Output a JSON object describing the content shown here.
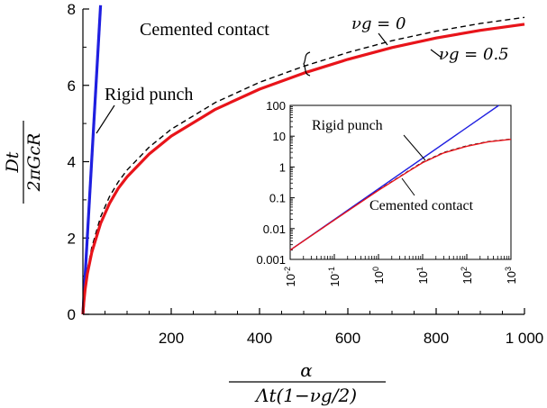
{
  "chart_data": [
    {
      "type": "line",
      "role": "main",
      "xlim": [
        0,
        1000
      ],
      "ylim": [
        0,
        8
      ],
      "x_ticks": [
        200,
        400,
        600,
        800,
        1000
      ],
      "x_tick_labels": [
        "200",
        "400",
        "600",
        "800",
        "1 000"
      ],
      "y_ticks": [
        0,
        2,
        4,
        6,
        8
      ],
      "y_tick_labels": [
        "0",
        "2",
        "4",
        "6",
        "8"
      ],
      "xlabel": {
        "numerator": "α",
        "denominator": "Λt(1−νg/2)"
      },
      "ylabel": {
        "numerator": "Dt",
        "denominator": "2πGcR"
      },
      "grid": false,
      "series": [
        {
          "name": "Rigid punch",
          "color": "#1f1fe0",
          "style": "solid",
          "x": [
            0,
            40
          ],
          "y": [
            0,
            8.1
          ]
        },
        {
          "name": "νg = 0",
          "color": "#000000",
          "style": "dashed",
          "x": [
            0,
            2,
            5,
            10,
            20,
            40,
            60,
            80,
            100,
            150,
            200,
            300,
            400,
            500,
            600,
            700,
            800,
            900,
            1000
          ],
          "y": [
            0,
            0.35,
            0.72,
            1.15,
            1.75,
            2.55,
            3.08,
            3.47,
            3.78,
            4.38,
            4.85,
            5.55,
            6.08,
            6.5,
            6.86,
            7.17,
            7.42,
            7.62,
            7.78
          ]
        },
        {
          "name": "νg = 0.5",
          "color": "#e8141a",
          "style": "solid",
          "x": [
            0,
            2,
            5,
            10,
            20,
            40,
            60,
            80,
            100,
            150,
            200,
            300,
            400,
            500,
            600,
            700,
            800,
            900,
            1000
          ],
          "y": [
            0,
            0.32,
            0.66,
            1.06,
            1.62,
            2.38,
            2.9,
            3.3,
            3.6,
            4.2,
            4.67,
            5.37,
            5.9,
            6.32,
            6.68,
            6.99,
            7.24,
            7.44,
            7.6
          ]
        }
      ],
      "annotations": {
        "rigid_punch": "Rigid punch",
        "cemented_contact": "Cemented contact",
        "nu_zero": "νg = 0",
        "nu_half": "νg = 0.5"
      }
    },
    {
      "type": "line",
      "role": "inset",
      "scale": "log-log",
      "xlim": [
        0.01,
        1000
      ],
      "ylim": [
        0.001,
        100
      ],
      "x_ticks": [
        0.01,
        0.1,
        1,
        10,
        100,
        1000
      ],
      "x_tick_labels": [
        [
          "10",
          "-2"
        ],
        [
          "10",
          "-1"
        ],
        [
          "10",
          "0"
        ],
        [
          "10",
          "1"
        ],
        [
          "10",
          "2"
        ],
        [
          "10",
          "3"
        ]
      ],
      "y_ticks": [
        0.001,
        0.01,
        0.1,
        1,
        10,
        100
      ],
      "y_tick_labels": [
        "0.001",
        "0.01",
        "0.1",
        "1",
        "10",
        "100"
      ],
      "series": [
        {
          "name": "Rigid punch",
          "color": "#1f1fe0",
          "style": "solid",
          "x": [
            0.01,
            530
          ],
          "y": [
            0.002,
            100
          ]
        },
        {
          "name": "νg = 0",
          "color": "#000000",
          "style": "dashed",
          "x": [
            0.01,
            0.1,
            1,
            5,
            10,
            30,
            100,
            300,
            1000
          ],
          "y": [
            0.002,
            0.019,
            0.18,
            0.78,
            1.45,
            3.0,
            4.9,
            6.7,
            8.1
          ]
        },
        {
          "name": "νg = 0.5",
          "color": "#e8141a",
          "style": "solid",
          "x": [
            0.01,
            0.1,
            1,
            5,
            10,
            30,
            100,
            300,
            1000
          ],
          "y": [
            0.002,
            0.019,
            0.175,
            0.75,
            1.38,
            2.85,
            4.7,
            6.5,
            7.9
          ]
        }
      ],
      "annotations": {
        "rigid_punch": "Rigid punch",
        "cemented_contact": "Cemented contact"
      }
    }
  ]
}
